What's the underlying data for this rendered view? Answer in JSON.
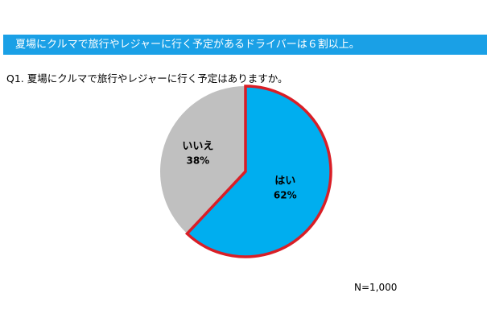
{
  "banner": {
    "text": "夏場にクルマで旅行やレジャーに行く予定があるドライバーは６割以上。"
  },
  "question": {
    "text": "Q1. 夏場にクルマで旅行やレジャーに行く予定はありますか。"
  },
  "sample_note": "N=1,000",
  "colors": {
    "banner_bg": "#1aa0e6",
    "yes_fill": "#00aeef",
    "no_fill": "#c0c0c0",
    "highlight_border": "#d91e26"
  },
  "chart_data": {
    "type": "pie",
    "title": "",
    "slices": [
      {
        "label": "はい",
        "value": 62,
        "display": "62%",
        "color": "#00aeef",
        "highlighted": true
      },
      {
        "label": "いいえ",
        "value": 38,
        "display": "38%",
        "color": "#c0c0c0",
        "highlighted": false
      }
    ],
    "start": "12 o'clock",
    "direction": "clockwise",
    "legend": "none"
  }
}
